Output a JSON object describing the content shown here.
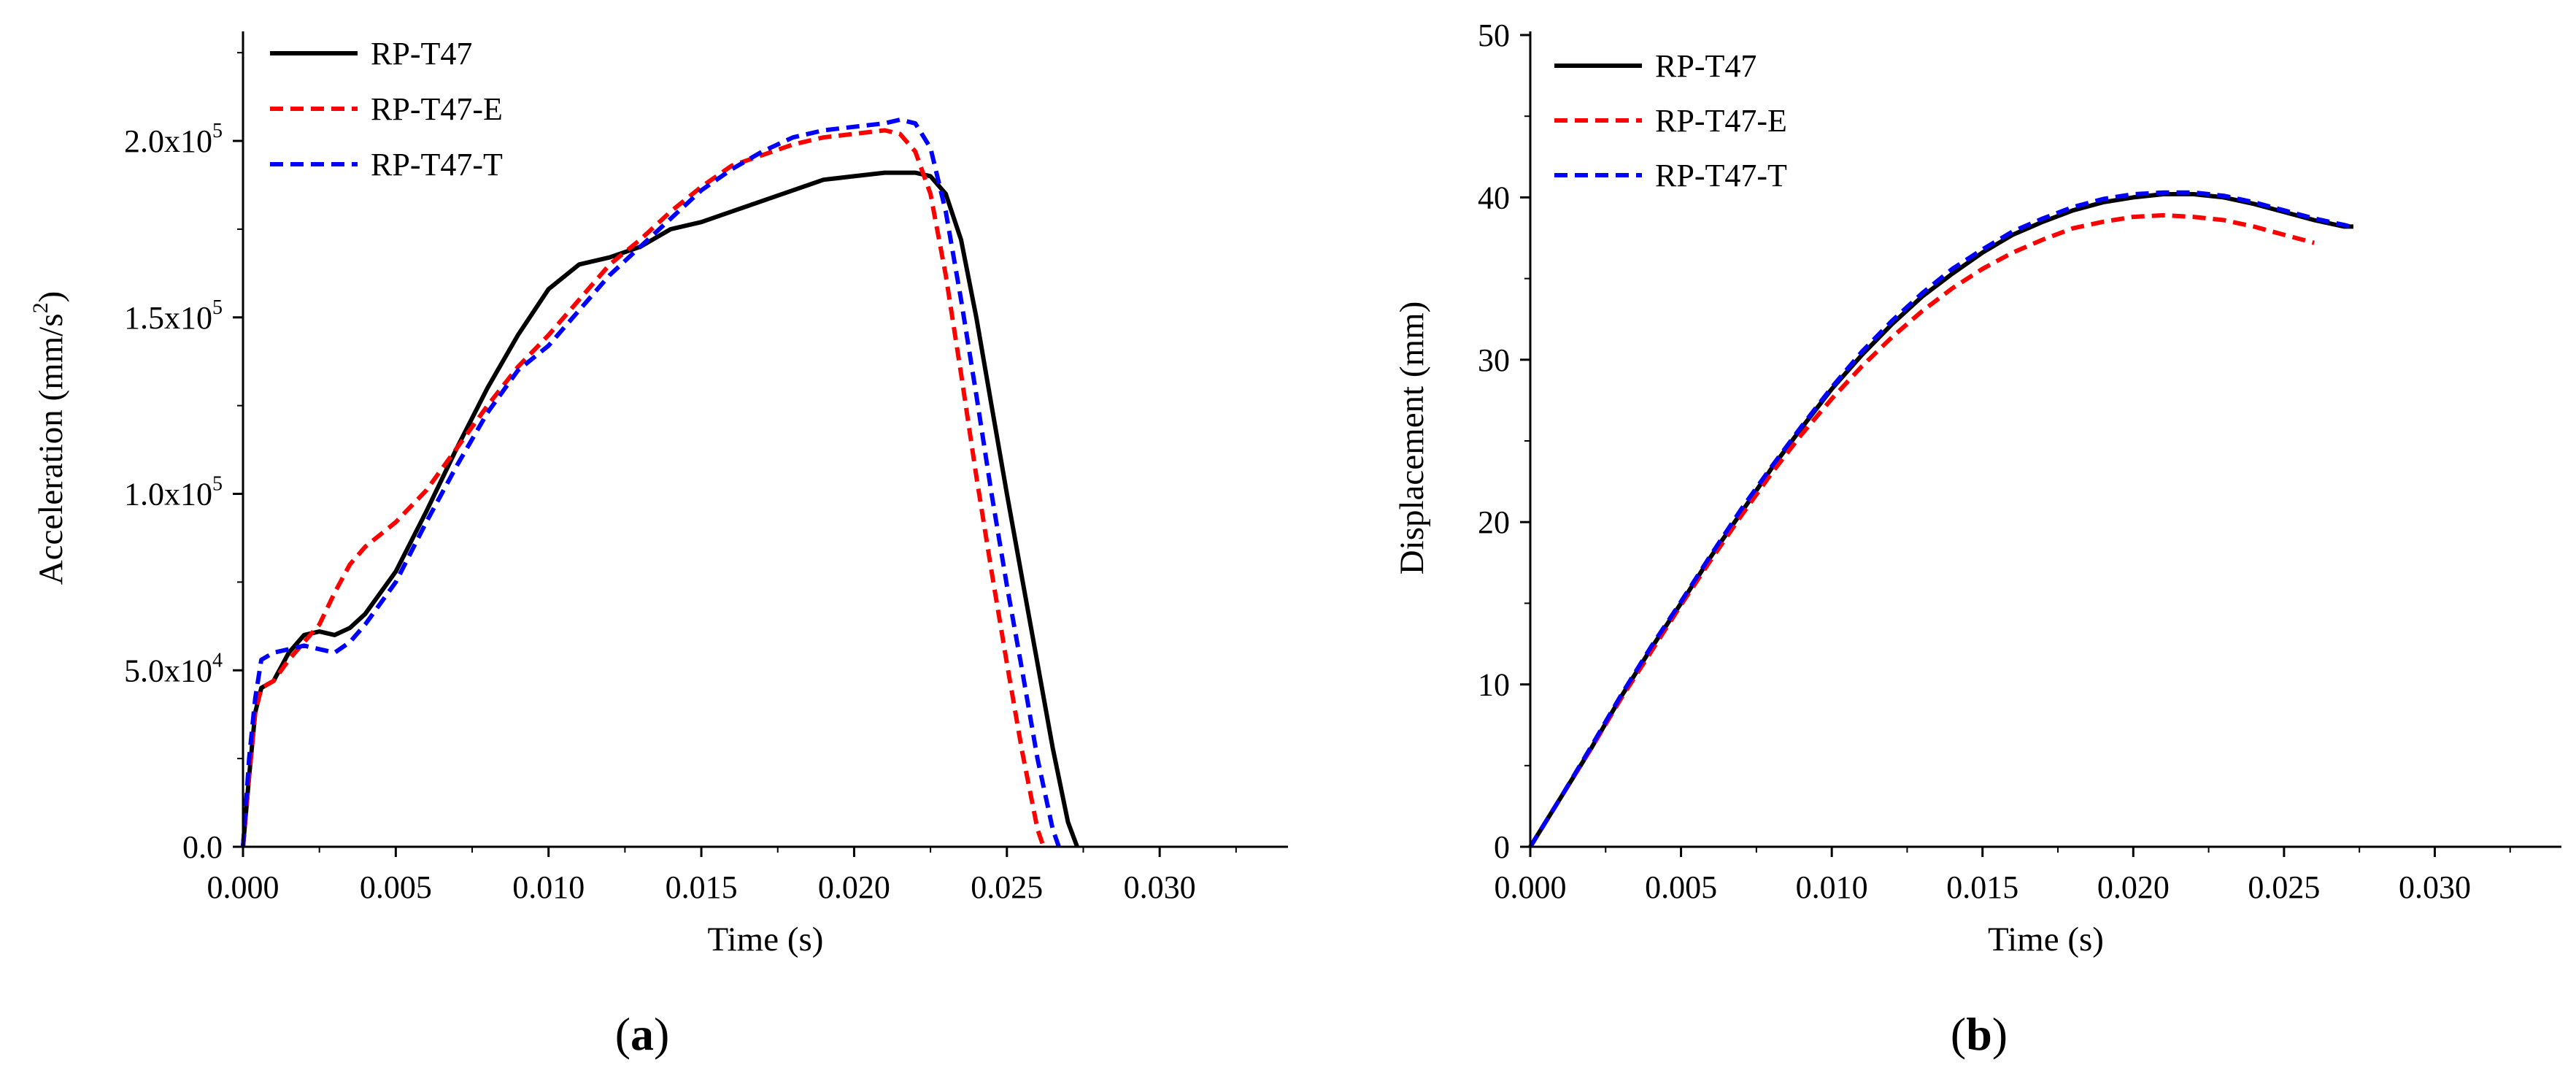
{
  "chart_data": [
    {
      "type": "line",
      "panel": "a",
      "caption": {
        "prefix": "(",
        "letter": "a",
        "suffix": ")"
      },
      "xlabel": "Time (s)",
      "ylabel": "Acceleration (mm/s",
      "ylabel_superscript": "2",
      "ylabel_suffix": ")",
      "xlim": [
        0,
        0.0342
      ],
      "ylim": [
        0,
        230000
      ],
      "x_ticks": [
        {
          "value": 0.0,
          "label": "0.000"
        },
        {
          "value": 0.005,
          "label": "0.005"
        },
        {
          "value": 0.01,
          "label": "0.010"
        },
        {
          "value": 0.015,
          "label": "0.015"
        },
        {
          "value": 0.02,
          "label": "0.020"
        },
        {
          "value": 0.025,
          "label": "0.025"
        },
        {
          "value": 0.03,
          "label": "0.030"
        }
      ],
      "y_ticks": [
        {
          "value": 0,
          "base": "0.0",
          "exp": ""
        },
        {
          "value": 50000,
          "base": "5.0x10",
          "exp": "4"
        },
        {
          "value": 100000,
          "base": "1.0x10",
          "exp": "5"
        },
        {
          "value": 150000,
          "base": "1.5x10",
          "exp": "5"
        },
        {
          "value": 200000,
          "base": "2.0x10",
          "exp": "5"
        }
      ],
      "legend_position": "top-left",
      "series": [
        {
          "name": "RP-T47",
          "color": "#000000",
          "dash": "solid",
          "x": [
            0,
            0.0002,
            0.0004,
            0.0006,
            0.001,
            0.0015,
            0.002,
            0.0025,
            0.003,
            0.0035,
            0.004,
            0.005,
            0.006,
            0.007,
            0.008,
            0.009,
            0.01,
            0.011,
            0.012,
            0.013,
            0.014,
            0.015,
            0.016,
            0.017,
            0.018,
            0.019,
            0.02,
            0.021,
            0.022,
            0.0225,
            0.023,
            0.0235,
            0.024,
            0.0245,
            0.025,
            0.0255,
            0.026,
            0.0265,
            0.027,
            0.0273
          ],
          "y": [
            0,
            20000,
            38000,
            45000,
            47000,
            55000,
            60000,
            61000,
            60000,
            62000,
            66000,
            78000,
            95000,
            113000,
            130000,
            145000,
            158000,
            165000,
            167000,
            170000,
            175000,
            177000,
            180000,
            183000,
            186000,
            189000,
            190000,
            191000,
            191000,
            190000,
            185000,
            172000,
            150000,
            125000,
            100000,
            76000,
            52000,
            28000,
            7000,
            0
          ]
        },
        {
          "name": "RP-T47-E",
          "color": "#ff0000",
          "dash": "dashed",
          "x": [
            0,
            0.0002,
            0.0004,
            0.0006,
            0.001,
            0.0015,
            0.002,
            0.0025,
            0.003,
            0.0035,
            0.004,
            0.005,
            0.006,
            0.007,
            0.008,
            0.009,
            0.01,
            0.011,
            0.012,
            0.013,
            0.014,
            0.015,
            0.016,
            0.017,
            0.018,
            0.019,
            0.02,
            0.021,
            0.0215,
            0.022,
            0.0225,
            0.023,
            0.0235,
            0.024,
            0.0245,
            0.025,
            0.0255,
            0.026,
            0.0262
          ],
          "y": [
            0,
            20000,
            38000,
            45000,
            47000,
            53000,
            58000,
            63000,
            72000,
            80000,
            85000,
            92000,
            101000,
            113000,
            125000,
            136000,
            145000,
            155000,
            165000,
            172000,
            180000,
            187000,
            193000,
            196000,
            199000,
            201000,
            202000,
            203000,
            202000,
            197000,
            185000,
            162000,
            134000,
            105000,
            78000,
            52000,
            27000,
            5000,
            0
          ]
        },
        {
          "name": "RP-T47-T",
          "color": "#0000ff",
          "dash": "dashed",
          "x": [
            0,
            0.0002,
            0.0004,
            0.0006,
            0.001,
            0.0015,
            0.002,
            0.0025,
            0.003,
            0.0035,
            0.004,
            0.005,
            0.006,
            0.007,
            0.008,
            0.009,
            0.01,
            0.011,
            0.012,
            0.013,
            0.014,
            0.015,
            0.016,
            0.017,
            0.018,
            0.019,
            0.02,
            0.021,
            0.0215,
            0.022,
            0.0225,
            0.023,
            0.0235,
            0.024,
            0.0245,
            0.025,
            0.0255,
            0.026,
            0.0265,
            0.0267
          ],
          "y": [
            0,
            25000,
            42000,
            53000,
            55000,
            56000,
            57000,
            56000,
            55000,
            58000,
            63000,
            75000,
            92000,
            108000,
            123000,
            135000,
            142000,
            152000,
            162000,
            170000,
            178000,
            186000,
            192000,
            197000,
            201000,
            203000,
            204000,
            205000,
            206000,
            205000,
            198000,
            180000,
            155000,
            128000,
            100000,
            74000,
            50000,
            25000,
            5000,
            0
          ]
        }
      ]
    },
    {
      "type": "line",
      "panel": "b",
      "caption": {
        "prefix": "(",
        "letter": "b",
        "suffix": ")"
      },
      "xlabel": "Time (s)",
      "ylabel": "Displacement (mm)",
      "xlim": [
        0,
        0.0342
      ],
      "ylim": [
        0,
        50
      ],
      "x_ticks": [
        {
          "value": 0.0,
          "label": "0.000"
        },
        {
          "value": 0.005,
          "label": "0.005"
        },
        {
          "value": 0.01,
          "label": "0.010"
        },
        {
          "value": 0.015,
          "label": "0.015"
        },
        {
          "value": 0.02,
          "label": "0.020"
        },
        {
          "value": 0.025,
          "label": "0.025"
        },
        {
          "value": 0.03,
          "label": "0.030"
        }
      ],
      "y_ticks": [
        {
          "value": 0,
          "label": "0"
        },
        {
          "value": 10,
          "label": "10"
        },
        {
          "value": 20,
          "label": "20"
        },
        {
          "value": 30,
          "label": "30"
        },
        {
          "value": 40,
          "label": "40"
        },
        {
          "value": 50,
          "label": "50"
        }
      ],
      "legend_position": "top-left",
      "series": [
        {
          "name": "RP-T47",
          "color": "#000000",
          "dash": "solid",
          "x": [
            0,
            0.001,
            0.002,
            0.003,
            0.004,
            0.005,
            0.006,
            0.007,
            0.008,
            0.009,
            0.01,
            0.011,
            0.012,
            0.013,
            0.014,
            0.015,
            0.016,
            0.017,
            0.018,
            0.019,
            0.02,
            0.021,
            0.022,
            0.023,
            0.024,
            0.025,
            0.026,
            0.027,
            0.0273
          ],
          "y": [
            0,
            3,
            6,
            9.2,
            12.2,
            15,
            17.9,
            20.6,
            23.3,
            25.8,
            28.2,
            30.3,
            32.2,
            33.9,
            35.3,
            36.6,
            37.7,
            38.5,
            39.2,
            39.7,
            40,
            40.2,
            40.2,
            40,
            39.6,
            39.1,
            38.6,
            38.2,
            38.2
          ]
        },
        {
          "name": "RP-T47-E",
          "color": "#ff0000",
          "dash": "dashed",
          "x": [
            0,
            0.001,
            0.002,
            0.003,
            0.004,
            0.005,
            0.006,
            0.007,
            0.008,
            0.009,
            0.01,
            0.011,
            0.012,
            0.013,
            0.014,
            0.015,
            0.016,
            0.017,
            0.018,
            0.019,
            0.02,
            0.021,
            0.022,
            0.023,
            0.024,
            0.025,
            0.026
          ],
          "y": [
            0,
            3,
            6,
            9.1,
            12,
            14.9,
            17.7,
            20.4,
            23,
            25.4,
            27.6,
            29.6,
            31.4,
            33,
            34.4,
            35.6,
            36.6,
            37.4,
            38.1,
            38.5,
            38.8,
            38.9,
            38.8,
            38.6,
            38.2,
            37.7,
            37.2
          ]
        },
        {
          "name": "RP-T47-T",
          "color": "#0000ff",
          "dash": "dashed",
          "x": [
            0,
            0.001,
            0.002,
            0.003,
            0.004,
            0.005,
            0.006,
            0.007,
            0.008,
            0.009,
            0.01,
            0.011,
            0.012,
            0.013,
            0.014,
            0.015,
            0.016,
            0.017,
            0.018,
            0.019,
            0.02,
            0.021,
            0.022,
            0.023,
            0.024,
            0.025,
            0.026,
            0.027,
            0.0272
          ],
          "y": [
            0,
            3,
            6.1,
            9.3,
            12.3,
            15.1,
            18,
            20.8,
            23.4,
            25.9,
            28.3,
            30.5,
            32.4,
            34.1,
            35.6,
            36.8,
            37.9,
            38.7,
            39.4,
            39.9,
            40.2,
            40.3,
            40.3,
            40.1,
            39.7,
            39.2,
            38.7,
            38.3,
            38.2
          ]
        }
      ]
    }
  ]
}
